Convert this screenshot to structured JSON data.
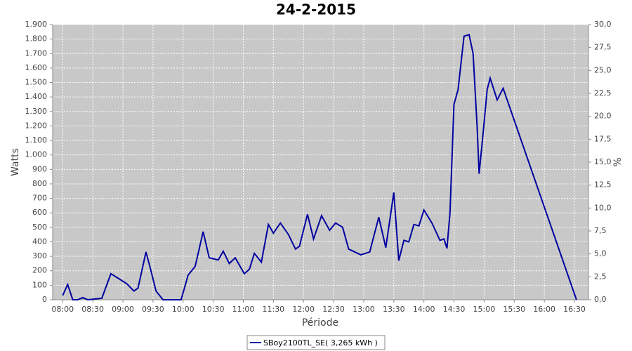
{
  "chart_data": {
    "type": "line",
    "title": "24-2-2015",
    "xlabel": "Période",
    "ylabel": "Watts",
    "y2label": "%",
    "xlim": [
      "07:50",
      "16:44"
    ],
    "xticks": [
      "08:00",
      "08:30",
      "09:00",
      "09:30",
      "10:00",
      "10:30",
      "11:00",
      "11:30",
      "12:00",
      "12:30",
      "13:00",
      "13:30",
      "14:00",
      "14:30",
      "15:00",
      "15:30",
      "16:00",
      "16:30"
    ],
    "ylim": [
      0,
      1900
    ],
    "yticks": [
      0,
      100,
      200,
      300,
      400,
      500,
      600,
      700,
      800,
      900,
      {
        "value": 1000,
        "label": "1.000"
      },
      {
        "value": 1100,
        "label": "1.100"
      },
      {
        "value": 1200,
        "label": "1.200"
      },
      {
        "value": 1300,
        "label": "1.300"
      },
      {
        "value": 1400,
        "label": "1.400"
      },
      {
        "value": 1500,
        "label": "1.500"
      },
      {
        "value": 1600,
        "label": "1.600"
      },
      {
        "value": 1700,
        "label": "1.700"
      },
      {
        "value": 1800,
        "label": "1.800"
      },
      {
        "value": 1900,
        "label": "1.900"
      }
    ],
    "y2lim": [
      0,
      30
    ],
    "y2ticks": [
      {
        "value": 0,
        "label": "0,0"
      },
      {
        "value": 2.5,
        "label": "2,5"
      },
      {
        "value": 5,
        "label": "5,0"
      },
      {
        "value": 7.5,
        "label": "7,5"
      },
      {
        "value": 10,
        "label": "10,0"
      },
      {
        "value": 12.5,
        "label": "12,5"
      },
      {
        "value": 15,
        "label": "15,0"
      },
      {
        "value": 17.5,
        "label": "17,5"
      },
      {
        "value": 20,
        "label": "20,0"
      },
      {
        "value": 22.5,
        "label": "22,5"
      },
      {
        "value": 25,
        "label": "25,0"
      },
      {
        "value": 27.5,
        "label": "27,5"
      },
      {
        "value": 30,
        "label": "30,0"
      }
    ],
    "grid": true,
    "legend": "bottom",
    "x": [
      "08:00",
      "08:05",
      "08:10",
      "08:15",
      "08:20",
      "08:25",
      "08:39",
      "08:48",
      "08:55",
      "09:04",
      "09:11",
      "09:15",
      "09:23",
      "09:28",
      "09:33",
      "09:40",
      "09:58",
      "10:05",
      "10:12",
      "10:20",
      "10:26",
      "10:35",
      "10:40",
      "10:46",
      "10:52",
      "11:01",
      "11:06",
      "11:11",
      "11:18",
      "11:25",
      "11:30",
      "11:37",
      "11:45",
      "11:52",
      "11:56",
      "12:04",
      "12:10",
      "12:18",
      "12:26",
      "12:32",
      "12:39",
      "12:45",
      "12:57",
      "13:06",
      "13:15",
      "13:22",
      "13:30",
      "13:35",
      "13:40",
      "13:45",
      "13:50",
      "13:55",
      "14:00",
      "14:08",
      "14:16",
      "14:20",
      "14:23",
      "14:26",
      "14:30",
      "14:34",
      "14:40",
      "14:45",
      "14:49",
      "14:53",
      "14:55",
      "14:59",
      "15:03",
      "15:06",
      "15:13",
      "15:19",
      "16:32"
    ],
    "series": [
      {
        "name": "SBoy2100TL_SE( 3,265 kWh )",
        "color": "#0000a0",
        "values": [
          30,
          105,
          0,
          0,
          15,
          0,
          10,
          180,
          150,
          110,
          60,
          80,
          330,
          200,
          60,
          0,
          0,
          170,
          230,
          470,
          290,
          275,
          335,
          250,
          290,
          180,
          210,
          320,
          260,
          520,
          460,
          530,
          450,
          350,
          370,
          590,
          420,
          580,
          480,
          530,
          500,
          350,
          310,
          330,
          570,
          360,
          740,
          270,
          410,
          400,
          520,
          510,
          620,
          530,
          410,
          420,
          355,
          600,
          1350,
          1450,
          1820,
          1830,
          1700,
          1200,
          870,
          1150,
          1450,
          1530,
          1380,
          1460,
          0
        ]
      }
    ]
  }
}
